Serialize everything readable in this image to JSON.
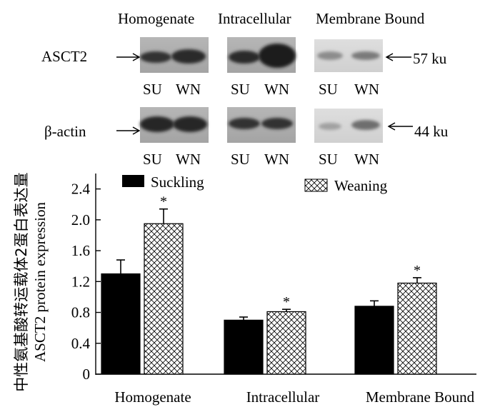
{
  "blot": {
    "columns": [
      "Homogenate",
      "Intracellular",
      "Membrane Bound"
    ],
    "rows": [
      {
        "protein": "ASCT2",
        "size": "57 ku"
      },
      {
        "protein": "β-actin",
        "size": "44 ku"
      }
    ],
    "lane_labels": [
      "SU",
      "WN"
    ]
  },
  "chart_data": {
    "type": "bar",
    "categories": [
      "Homogenate",
      "Intracellular",
      "Membrane Bound"
    ],
    "series": [
      {
        "name": "Suckling",
        "values": [
          1.3,
          0.7,
          0.88
        ],
        "errors": [
          0.18,
          0.04,
          0.07
        ],
        "fill": "solid"
      },
      {
        "name": "Weaning",
        "values": [
          1.95,
          0.81,
          1.18
        ],
        "errors": [
          0.19,
          0.03,
          0.07
        ],
        "fill": "crosshatch"
      }
    ],
    "significance": [
      "*",
      "*",
      "*"
    ],
    "ylabel_cn": "中性氨基酸转运载体2蛋白表达量",
    "ylabel_en": "ASCT2 protein expression",
    "yticks": [
      "0",
      "0.4",
      "0.8",
      "1.2",
      "1.6",
      "2.0",
      "2.4"
    ],
    "ylim": [
      0,
      2.6
    ],
    "legend_position": "top",
    "colors": {
      "suckling": "#000000",
      "weaning": "#ffffff",
      "band": "#3a3a3a"
    }
  }
}
